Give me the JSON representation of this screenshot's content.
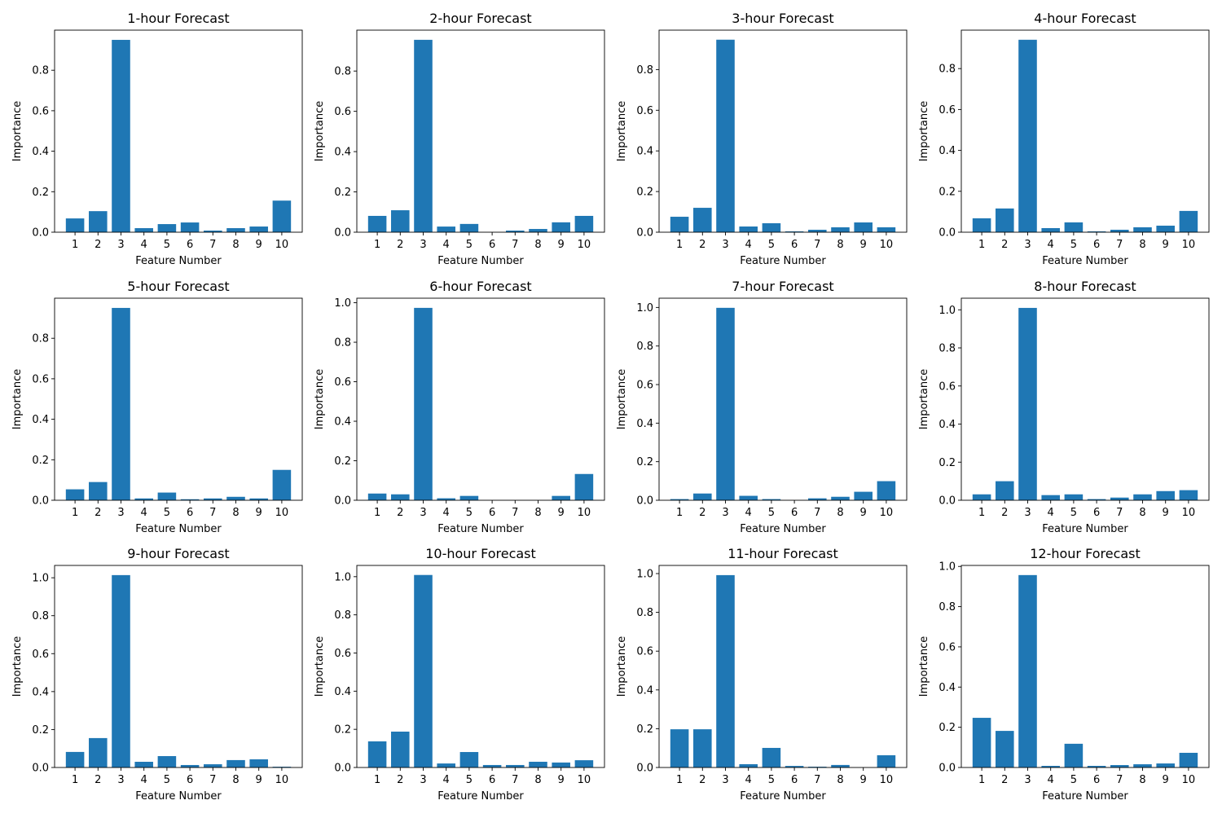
{
  "figure": {
    "bar_color": "#1f77b4",
    "axis_color": "#000000",
    "background": "#ffffff"
  },
  "chart_data": [
    {
      "type": "bar",
      "title": "1-hour Forecast",
      "xlabel": "Feature Number",
      "ylabel": "Importance",
      "categories": [
        "1",
        "2",
        "3",
        "4",
        "5",
        "6",
        "7",
        "8",
        "9",
        "10"
      ],
      "values": [
        0.068,
        0.104,
        0.95,
        0.02,
        0.04,
        0.048,
        0.008,
        0.02,
        0.028,
        0.156
      ],
      "ylim": [
        0,
        0.998
      ],
      "yticks": [
        "0.0",
        "0.2",
        "0.4",
        "0.6",
        "0.8"
      ],
      "grid": false
    },
    {
      "type": "bar",
      "title": "2-hour Forecast",
      "xlabel": "Feature Number",
      "ylabel": "Importance",
      "categories": [
        "1",
        "2",
        "3",
        "4",
        "5",
        "6",
        "7",
        "8",
        "9",
        "10"
      ],
      "values": [
        0.081,
        0.109,
        0.955,
        0.028,
        0.041,
        0.0,
        0.008,
        0.016,
        0.049,
        0.081
      ],
      "ylim": [
        0,
        1.003
      ],
      "yticks": [
        "0.0",
        "0.2",
        "0.4",
        "0.6",
        "0.8"
      ],
      "grid": false
    },
    {
      "type": "bar",
      "title": "3-hour Forecast",
      "xlabel": "Feature Number",
      "ylabel": "Importance",
      "categories": [
        "1",
        "2",
        "3",
        "4",
        "5",
        "6",
        "7",
        "8",
        "9",
        "10"
      ],
      "values": [
        0.076,
        0.12,
        0.947,
        0.028,
        0.044,
        0.004,
        0.012,
        0.024,
        0.048,
        0.024
      ],
      "ylim": [
        0,
        0.994
      ],
      "yticks": [
        "0.0",
        "0.2",
        "0.4",
        "0.6",
        "0.8"
      ],
      "grid": false
    },
    {
      "type": "bar",
      "title": "4-hour Forecast",
      "xlabel": "Feature Number",
      "ylabel": "Importance",
      "categories": [
        "1",
        "2",
        "3",
        "4",
        "5",
        "6",
        "7",
        "8",
        "9",
        "10"
      ],
      "values": [
        0.068,
        0.116,
        0.941,
        0.02,
        0.048,
        0.004,
        0.012,
        0.024,
        0.032,
        0.104
      ],
      "ylim": [
        0,
        0.988
      ],
      "yticks": [
        "0.0",
        "0.2",
        "0.4",
        "0.6",
        "0.8"
      ],
      "grid": false
    },
    {
      "type": "bar",
      "title": "5-hour Forecast",
      "xlabel": "Feature Number",
      "ylabel": "Importance",
      "categories": [
        "1",
        "2",
        "3",
        "4",
        "5",
        "6",
        "7",
        "8",
        "9",
        "10"
      ],
      "values": [
        0.054,
        0.09,
        0.95,
        0.009,
        0.038,
        0.005,
        0.009,
        0.017,
        0.009,
        0.15
      ],
      "ylim": [
        0,
        0.998
      ],
      "yticks": [
        "0.0",
        "0.2",
        "0.4",
        "0.6",
        "0.8"
      ],
      "grid": false
    },
    {
      "type": "bar",
      "title": "6-hour Forecast",
      "xlabel": "Feature Number",
      "ylabel": "Importance",
      "categories": [
        "1",
        "2",
        "3",
        "4",
        "5",
        "6",
        "7",
        "8",
        "9",
        "10"
      ],
      "values": [
        0.034,
        0.03,
        0.974,
        0.01,
        0.022,
        0.0,
        0.0,
        0.0,
        0.022,
        0.133
      ],
      "ylim": [
        0,
        1.023
      ],
      "yticks": [
        "0.0",
        "0.2",
        "0.4",
        "0.6",
        "0.8",
        "1.0"
      ],
      "grid": false
    },
    {
      "type": "bar",
      "title": "7-hour Forecast",
      "xlabel": "Feature Number",
      "ylabel": "Importance",
      "categories": [
        "1",
        "2",
        "3",
        "4",
        "5",
        "6",
        "7",
        "8",
        "9",
        "10"
      ],
      "values": [
        0.006,
        0.035,
        0.998,
        0.023,
        0.006,
        0.0,
        0.01,
        0.018,
        0.044,
        0.099
      ],
      "ylim": [
        0,
        1.048
      ],
      "yticks": [
        "0.0",
        "0.2",
        "0.4",
        "0.6",
        "0.8",
        "1.0"
      ],
      "grid": false
    },
    {
      "type": "bar",
      "title": "8-hour Forecast",
      "xlabel": "Feature Number",
      "ylabel": "Importance",
      "categories": [
        "1",
        "2",
        "3",
        "4",
        "5",
        "6",
        "7",
        "8",
        "9",
        "10"
      ],
      "values": [
        0.031,
        0.1,
        1.01,
        0.027,
        0.031,
        0.006,
        0.014,
        0.031,
        0.048,
        0.053
      ],
      "ylim": [
        0,
        1.061
      ],
      "yticks": [
        "0.0",
        "0.2",
        "0.4",
        "0.6",
        "0.8",
        "1.0"
      ],
      "grid": false
    },
    {
      "type": "bar",
      "title": "9-hour Forecast",
      "xlabel": "Feature Number",
      "ylabel": "Importance",
      "categories": [
        "1",
        "2",
        "3",
        "4",
        "5",
        "6",
        "7",
        "8",
        "9",
        "10"
      ],
      "values": [
        0.082,
        0.155,
        1.014,
        0.03,
        0.06,
        0.013,
        0.017,
        0.039,
        0.043,
        0.004
      ],
      "ylim": [
        0,
        1.065
      ],
      "yticks": [
        "0.0",
        "0.2",
        "0.4",
        "0.6",
        "0.8",
        "1.0"
      ],
      "grid": false
    },
    {
      "type": "bar",
      "title": "10-hour Forecast",
      "xlabel": "Feature Number",
      "ylabel": "Importance",
      "categories": [
        "1",
        "2",
        "3",
        "4",
        "5",
        "6",
        "7",
        "8",
        "9",
        "10"
      ],
      "values": [
        0.137,
        0.188,
        1.009,
        0.021,
        0.081,
        0.013,
        0.013,
        0.03,
        0.026,
        0.038
      ],
      "ylim": [
        0,
        1.059
      ],
      "yticks": [
        "0.0",
        "0.2",
        "0.4",
        "0.6",
        "0.8",
        "1.0"
      ],
      "grid": false
    },
    {
      "type": "bar",
      "title": "11-hour Forecast",
      "xlabel": "Feature Number",
      "ylabel": "Importance",
      "categories": [
        "1",
        "2",
        "3",
        "4",
        "5",
        "6",
        "7",
        "8",
        "9",
        "10"
      ],
      "values": [
        0.197,
        0.197,
        0.992,
        0.017,
        0.101,
        0.008,
        0.004,
        0.013,
        0.0,
        0.063
      ],
      "ylim": [
        0,
        1.042
      ],
      "yticks": [
        "0.0",
        "0.2",
        "0.4",
        "0.6",
        "0.8",
        "1.0"
      ],
      "grid": false
    },
    {
      "type": "bar",
      "title": "12-hour Forecast",
      "xlabel": "Feature Number",
      "ylabel": "Importance",
      "categories": [
        "1",
        "2",
        "3",
        "4",
        "5",
        "6",
        "7",
        "8",
        "9",
        "10"
      ],
      "values": [
        0.247,
        0.182,
        0.957,
        0.008,
        0.118,
        0.008,
        0.012,
        0.016,
        0.02,
        0.073
      ],
      "ylim": [
        0,
        1.005
      ],
      "yticks": [
        "0.0",
        "0.2",
        "0.4",
        "0.6",
        "0.8",
        "1.0"
      ],
      "grid": false
    }
  ]
}
